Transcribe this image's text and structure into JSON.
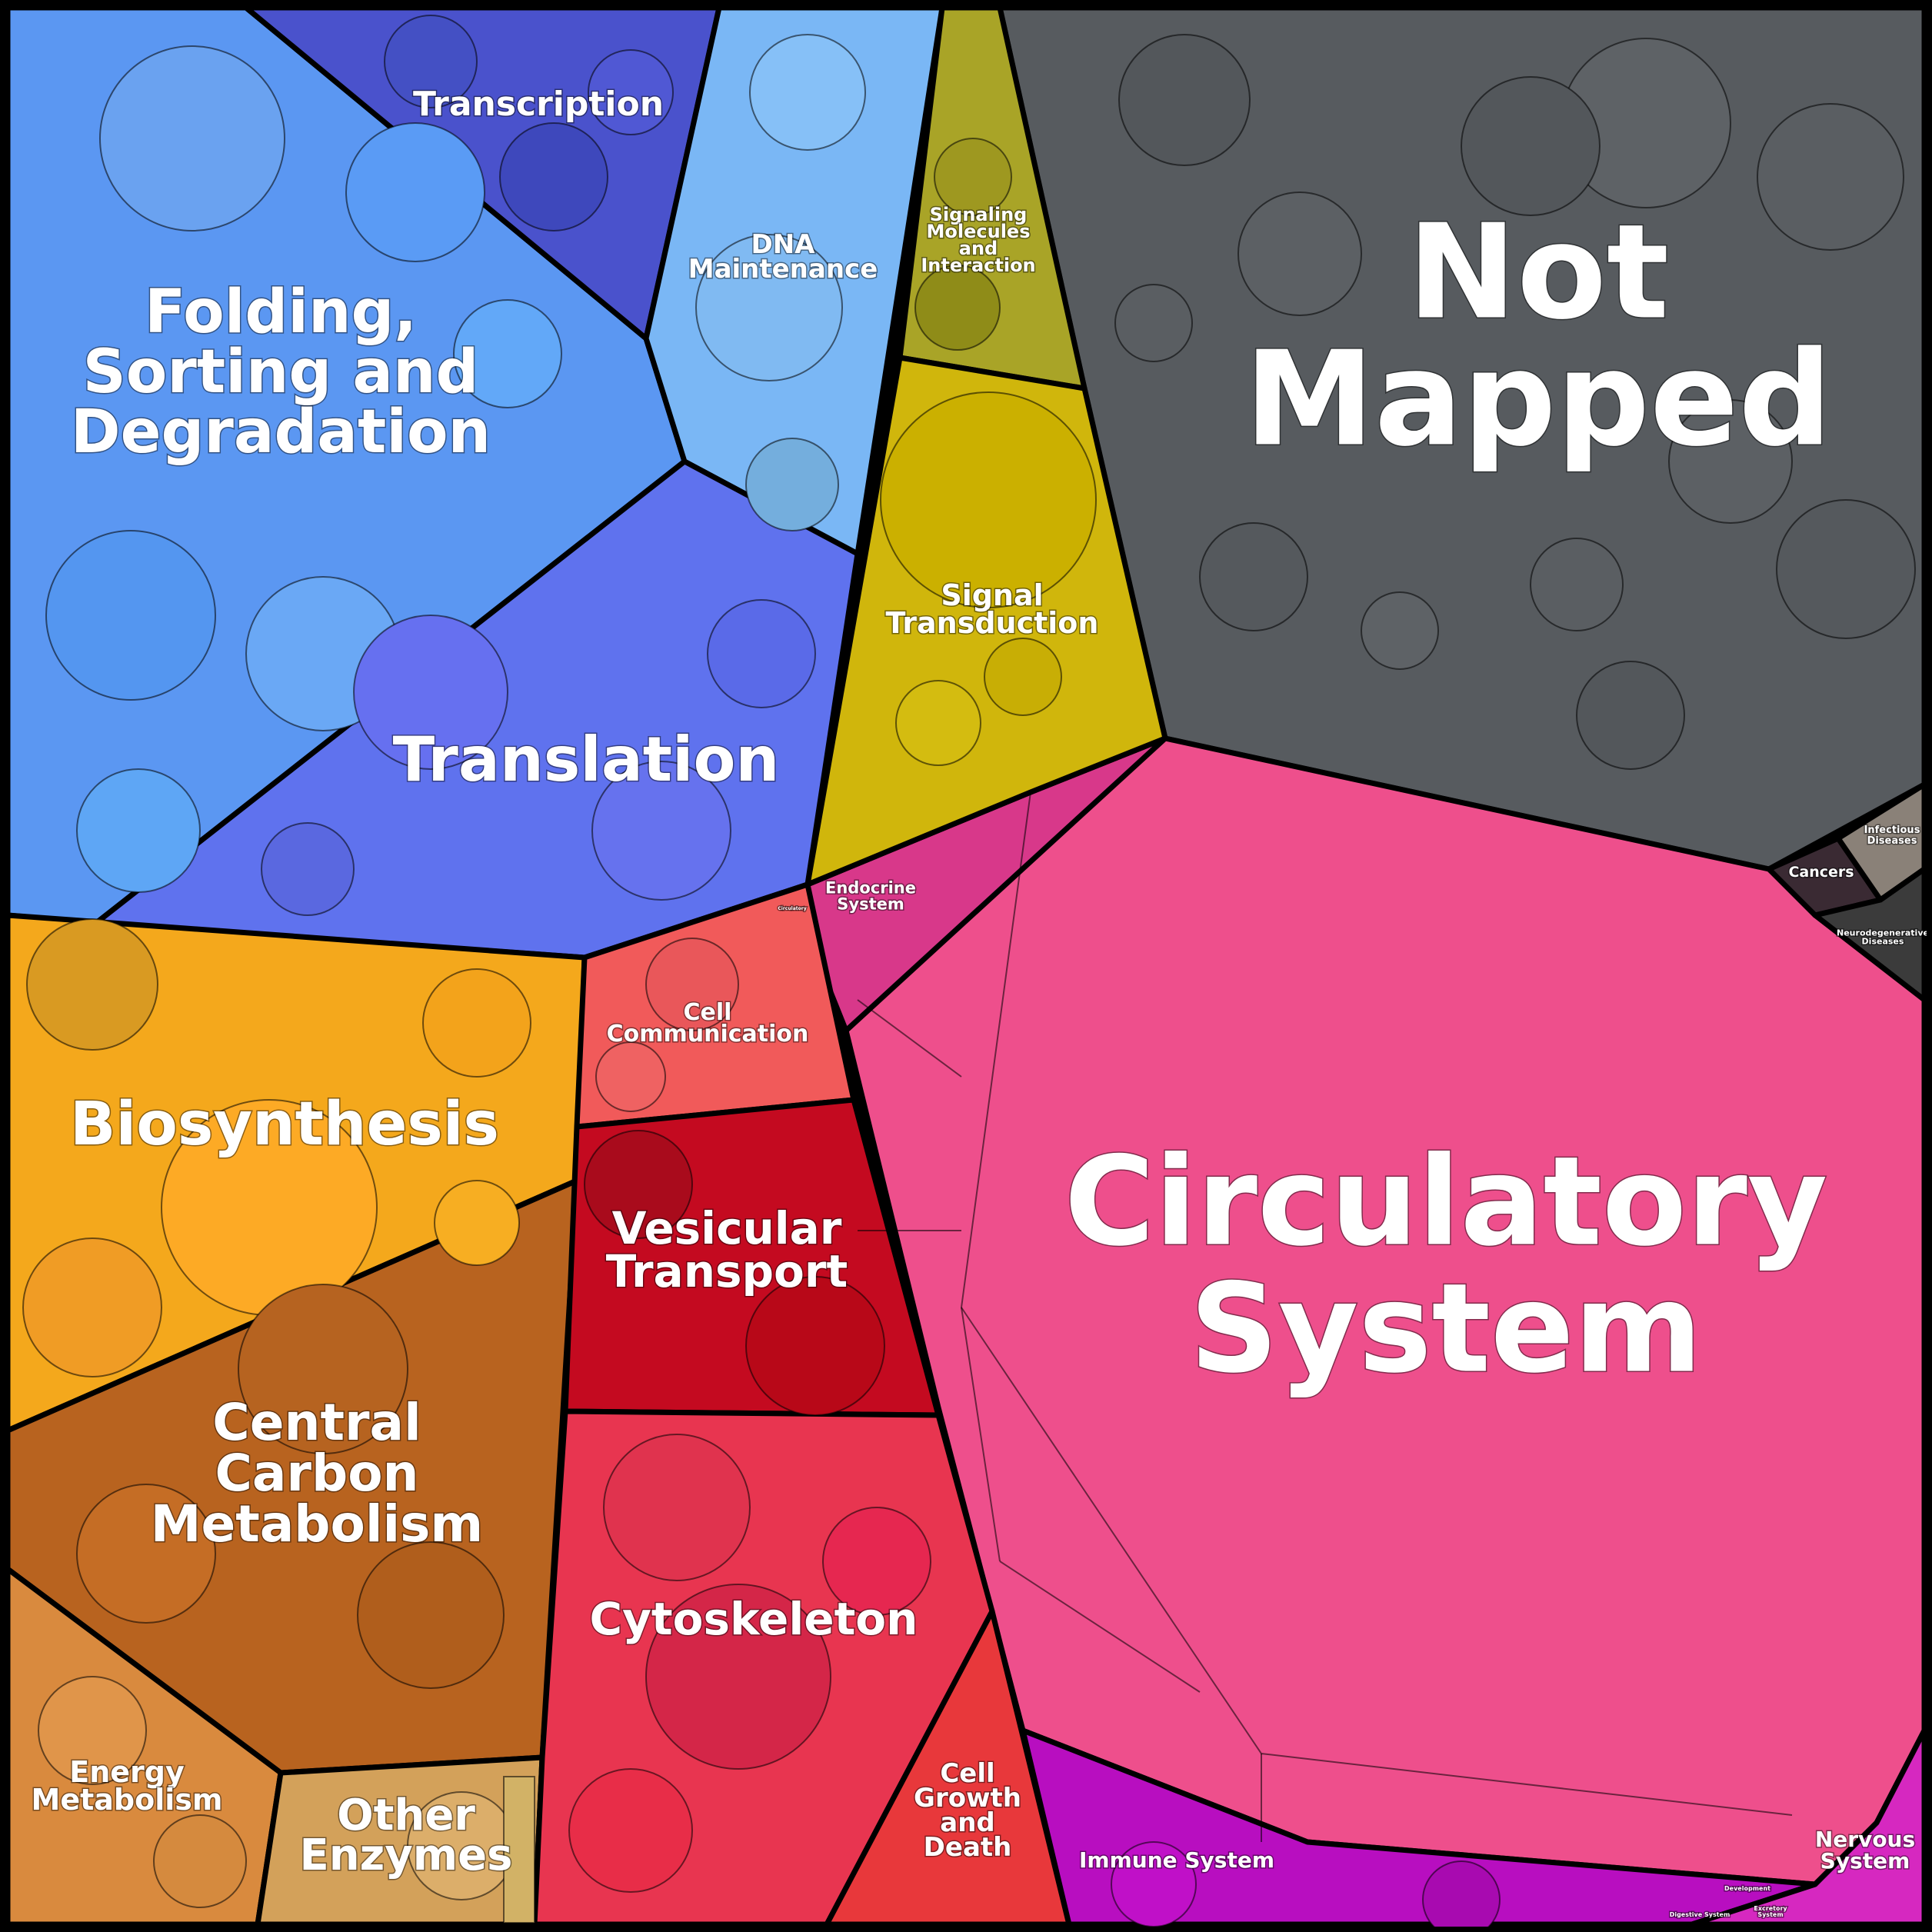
{
  "labels": {
    "not_mapped": [
      "Not",
      "Mapped"
    ],
    "circulatory_system": [
      "Circulatory",
      "System"
    ],
    "folding": [
      "Folding,",
      "Sorting and",
      "Degradation"
    ],
    "transcription": [
      "Transcription"
    ],
    "dna_maintenance": [
      "DNA",
      "Maintenance"
    ],
    "signaling_molecules": [
      "Signaling",
      "Molecules",
      "and",
      "Interaction"
    ],
    "signal_transduction": [
      "Signal",
      "Transduction"
    ],
    "translation": [
      "Translation"
    ],
    "biosynthesis": [
      "Biosynthesis"
    ],
    "central_carbon": [
      "Central",
      "Carbon",
      "Metabolism"
    ],
    "energy_metabolism": [
      "Energy",
      "Metabolism"
    ],
    "other_enzymes": [
      "Other",
      "Enzymes"
    ],
    "cell_communication": [
      "Cell",
      "Communication"
    ],
    "vesicular_transport": [
      "Vesicular",
      "Transport"
    ],
    "cytoskeleton": [
      "Cytoskeleton"
    ],
    "cell_growth": [
      "Cell",
      "Growth",
      "and",
      "Death"
    ],
    "endocrine_system": [
      "Endocrine",
      "System"
    ],
    "immune_system": [
      "Immune System"
    ],
    "nervous_system": [
      "Nervous",
      "System"
    ],
    "cancers": [
      "Cancers"
    ],
    "infectious_diseases": [
      "Infectious",
      "Diseases"
    ],
    "neurodegenerative": [
      "Neurodegenerative",
      "Diseases"
    ],
    "development": [
      "Development"
    ],
    "digestive_system": [
      "Digestive System"
    ],
    "excretory_system": [
      "Excretory",
      "System"
    ],
    "circulatory_small": [
      "Circulatory"
    ]
  },
  "colors": {
    "not_mapped": "#575b5f",
    "circulatory_system": "#ee4f8c",
    "folding": "#5b97f2",
    "transcription": "#4a52cc",
    "dna_maintenance": "#7ab7f5",
    "signaling_molecules": "#a9a427",
    "signal_transduction": "#d0b60c",
    "translation": "#5f72ee",
    "biosynthesis": "#f4a81c",
    "central_carbon": "#b8631f",
    "energy_metabolism": "#d98a3e",
    "other_enzymes": "#d3a15a",
    "cell_communication": "#f15a5a",
    "vesicular_transport": "#c40a20",
    "cytoskeleton": "#e83550",
    "cell_growth": "#e8383b",
    "endocrine_system": "#d8388a",
    "immune_system": "#b80ec0",
    "nervous_system": "#d628c0",
    "cancers": "#3a2a33",
    "infectious_diseases": "#8a8178",
    "neurodegenerative": "#3b3b3b"
  }
}
